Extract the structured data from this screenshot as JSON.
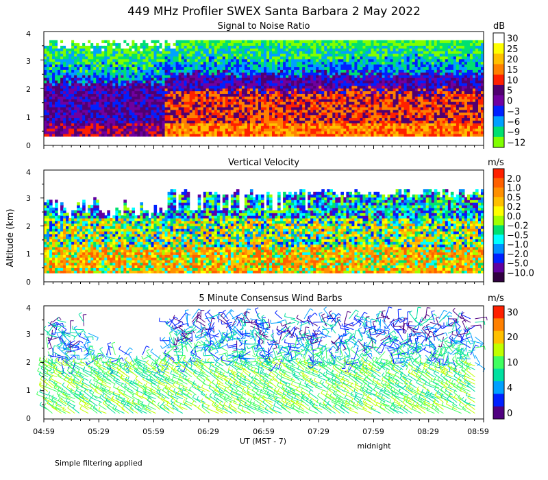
{
  "figure": {
    "title": "449 MHz Profiler SWEX Santa Barbara  2 May 2022",
    "ylabel": "Altitude (km)",
    "xlabel": "UT  (MST - 7)",
    "midnight_label": "midnight",
    "footnote": "Simple filtering applied"
  },
  "chart_data": [
    {
      "type": "heatmap",
      "title": "Signal to Noise Ratio",
      "ylabel": "Altitude (km)",
      "ylim": [
        0,
        4
      ],
      "yticks": [
        "0",
        "1",
        "2",
        "3",
        "4"
      ],
      "xticks": [
        "04:59",
        "05:29",
        "05:59",
        "06:29",
        "06:59",
        "07:29",
        "07:59",
        "08:29",
        "08:59"
      ],
      "colorbar_unit": "dB",
      "colorbar_levels": [
        "30",
        "25",
        "20",
        "15",
        "10",
        "5",
        "0",
        "−3",
        "−6",
        "−9",
        "−12"
      ],
      "colorbar_colors": [
        "#ffffff",
        "#ffff00",
        "#ffc000",
        "#ff8000",
        "#ff2000",
        "#500070",
        "#7000a0",
        "#0020ff",
        "#00a0ff",
        "#00e070",
        "#80ff00"
      ]
    },
    {
      "type": "heatmap",
      "title": "Vertical Velocity",
      "ylabel": "Altitude (km)",
      "ylim": [
        0,
        4
      ],
      "yticks": [
        "0",
        "1",
        "2",
        "3",
        "4"
      ],
      "xticks": [
        "04:59",
        "05:29",
        "05:59",
        "06:29",
        "06:59",
        "07:29",
        "07:59",
        "08:29",
        "08:59"
      ],
      "colorbar_unit": "m/s",
      "colorbar_levels": [
        "2.0",
        "1.0",
        "0.5",
        "0.2",
        "0.0",
        "−0.2",
        "−0.5",
        "−1.0",
        "−2.0",
        "−5.0",
        "−10.0"
      ],
      "colorbar_colors": [
        "#ff2000",
        "#ff6000",
        "#ff9000",
        "#ffc000",
        "#ffff00",
        "#a0ff00",
        "#00e070",
        "#00ffff",
        "#0090ff",
        "#0020ff",
        "#6000a0",
        "#300040"
      ]
    },
    {
      "type": "scatter",
      "title": "5 Minute Consensus Wind Barbs",
      "ylabel": "Altitude (km)",
      "ylim": [
        0,
        4
      ],
      "yticks": [
        "0",
        "1",
        "2",
        "3",
        "4"
      ],
      "xticks": [
        "04:59",
        "05:29",
        "05:59",
        "06:29",
        "06:59",
        "07:29",
        "07:59",
        "08:29",
        "08:59"
      ],
      "colorbar_unit": "m/s",
      "colorbar_levels": [
        "30",
        "20",
        "10",
        "4",
        "0"
      ],
      "colorbar_colors": [
        "#ff2000",
        "#ff8000",
        "#ffc000",
        "#c0ff00",
        "#40ff60",
        "#00e0a0",
        "#00a0ff",
        "#0020ff",
        "#500080"
      ]
    }
  ]
}
